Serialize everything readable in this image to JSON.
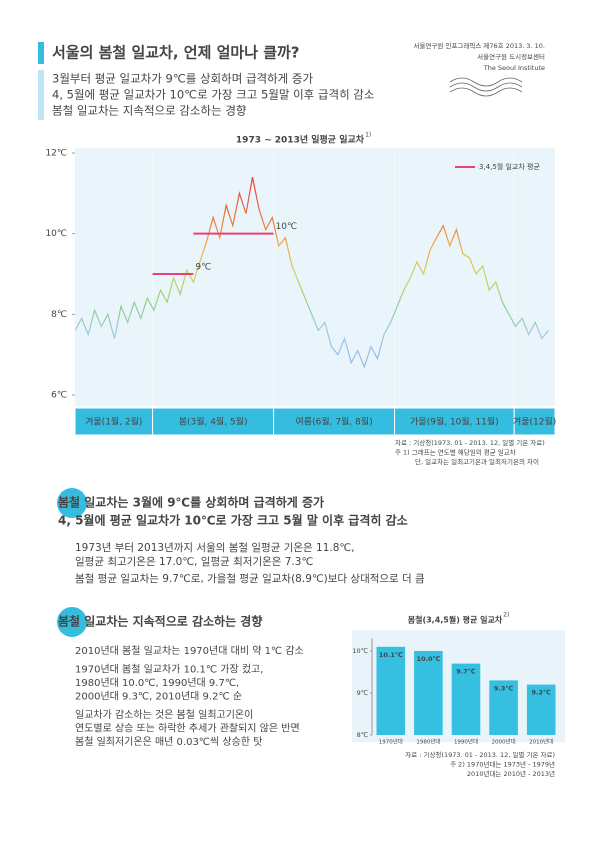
{
  "header": {
    "title": "서울의 봄철 일교차, 언제 얼마나 클까?",
    "intro": [
      "3월부터 평균 일교차가 9℃를 상회하며 급격하게 증가",
      "4, 5월에 평균 일교차가 10℃로 가장 크고 5월말 이후 급격히 감소",
      "봄철 일교차는 지속적으로 감소하는 경향"
    ],
    "publisher": [
      "서울연구원 인포그래픽스 제76호 2013. 3. 10.",
      "서울연구원 도시정보센터",
      "The Seoul Institute"
    ]
  },
  "chart_data": [
    {
      "type": "line",
      "title": "1973 ~ 2013년 일평균 일교차",
      "title_note": "1)",
      "x": [
        1,
        6,
        11,
        16,
        21,
        26,
        31,
        36,
        41,
        46,
        51,
        56,
        61,
        66,
        71,
        76,
        81,
        86,
        91,
        96,
        101,
        106,
        111,
        116,
        121,
        126,
        131,
        136,
        141,
        146,
        151,
        156,
        161,
        166,
        171,
        176,
        181,
        186,
        191,
        196,
        201,
        206,
        211,
        216,
        221,
        226,
        231,
        236,
        241,
        246,
        251,
        256,
        261,
        266,
        271,
        276,
        281,
        286,
        291,
        296,
        301,
        306,
        311,
        316,
        321,
        326,
        331,
        336,
        341,
        346,
        351,
        356,
        361
      ],
      "values": [
        7.6,
        7.9,
        7.5,
        8.1,
        7.7,
        8.0,
        7.4,
        8.2,
        7.8,
        8.3,
        7.9,
        8.4,
        8.1,
        8.6,
        8.3,
        8.9,
        8.5,
        9.1,
        8.8,
        9.3,
        9.8,
        10.4,
        9.9,
        10.7,
        10.2,
        11.0,
        10.5,
        11.4,
        10.6,
        10.1,
        10.4,
        9.7,
        9.9,
        9.2,
        8.8,
        8.4,
        8.0,
        7.6,
        7.8,
        7.2,
        7.0,
        7.4,
        6.8,
        7.1,
        6.7,
        7.2,
        6.9,
        7.5,
        7.8,
        8.2,
        8.6,
        8.9,
        9.3,
        9.0,
        9.6,
        9.9,
        10.2,
        9.7,
        10.1,
        9.5,
        9.4,
        9.0,
        9.2,
        8.6,
        8.8,
        8.3,
        8.0,
        7.7,
        7.9,
        7.5,
        7.8,
        7.4,
        7.6
      ],
      "color_stops": [
        {
          "value": 6.5,
          "color": "#8fb3e0"
        },
        {
          "value": 7.5,
          "color": "#9ec9e8"
        },
        {
          "value": 8.2,
          "color": "#8fcf8a"
        },
        {
          "value": 9.0,
          "color": "#c8d65a"
        },
        {
          "value": 9.6,
          "color": "#f0b040"
        },
        {
          "value": 10.3,
          "color": "#ee7a3a"
        },
        {
          "value": 11.3,
          "color": "#e8403a"
        }
      ],
      "xlim": [
        1,
        366
      ],
      "ylim": [
        6,
        12
      ],
      "yticks": [
        {
          "value": 6,
          "label": "6℃"
        },
        {
          "value": 8,
          "label": "8℃"
        },
        {
          "value": 10,
          "label": "10℃"
        },
        {
          "value": 12,
          "label": "12℃"
        }
      ],
      "bands": [
        {
          "label": "겨울(1월, 2월)",
          "start": 1,
          "end": 60
        },
        {
          "label": "봄(3월, 4월, 5월)",
          "start": 60,
          "end": 152
        },
        {
          "label": "여름(6월, 7월, 8월)",
          "start": 152,
          "end": 244
        },
        {
          "label": "가을(9월, 10월, 11월)",
          "start": 244,
          "end": 335
        },
        {
          "label": "겨울(12월)",
          "start": 335,
          "end": 366
        }
      ],
      "reference_lines": [
        {
          "value": 9,
          "start": 60,
          "end": 91,
          "label": "9℃"
        },
        {
          "value": 10,
          "start": 91,
          "end": 152,
          "label": "10℃"
        }
      ],
      "reference_color": "#e8407a",
      "reference_legend": "3,4,5월 일교차 평균",
      "notes": [
        "자료 : 기상청(1973. 01 - 2013. 12, 일별 기온 자료)",
        "주 1) 그래프는 연도별 해당일의 평균 일교차",
        "단, 일교차는 일최고기온과 일최저기온의 차이"
      ]
    },
    {
      "type": "bar",
      "title": "봄철(3,4,5월) 평균 일교차",
      "title_note": "2)",
      "categories": [
        "1970년대",
        "1980년대",
        "1990년대",
        "2000년대",
        "2010년대"
      ],
      "values": [
        10.1,
        10.0,
        9.7,
        9.3,
        9.2
      ],
      "value_labels": [
        "10.1℃",
        "10.0℃",
        "9.7℃",
        "9.3℃",
        "9.2℃"
      ],
      "color": "#35c0e2",
      "ylim": [
        8,
        10.3
      ],
      "yticks": [
        {
          "value": 8,
          "label": "8℃"
        },
        {
          "value": 9,
          "label": "9℃"
        },
        {
          "value": 10,
          "label": "10℃"
        }
      ],
      "notes": [
        "자료 : 기상청(1973. 01 - 2013. 12, 일별 기온 자료)",
        "주 2) 1970년대는 1973년 - 1979년",
        "2010년대는 2010년 - 2013년"
      ]
    }
  ],
  "section1": {
    "heading": [
      "봄철 일교차는 3월에 9℃를 상회하며 급격하게 증가",
      "4, 5월에 평균 일교차가 10℃로 가장 크고 5월 말 이후 급격히 감소"
    ],
    "body": [
      [
        "1973년 부터 2013년까지 서울의 봄철 일평균 기온은 11.8℃,",
        "일평균 최고기온은 17.0℃, 일평균 최저기온은 7.3℃"
      ],
      [
        "봄철 평균 일교차는 9.7℃로, 가을철 평균 일교차(8.9℃)보다 상대적으로 더 큼"
      ]
    ]
  },
  "section2": {
    "heading": "봄철 일교차는 지속적으로 감소하는 경향",
    "body": [
      [
        "2010년대 봄철 일교차는 1970년대 대비 약 1℃ 감소"
      ],
      [
        "1970년대 봄철 일교차가 10.1℃ 가장 컸고,",
        "1980년대 10.0℃, 1990년대 9.7℃,",
        "2000년대 9.3℃, 2010년대 9.2℃ 순"
      ],
      [
        "일교차가 감소하는 것은 봄철 일최고기온이",
        "연도별로 상승 또는 하락한 추세가 관찰되지 않은 반면",
        "봄철 일최저기온은 매년 0.03℃씩 상승한 탓"
      ]
    ]
  }
}
